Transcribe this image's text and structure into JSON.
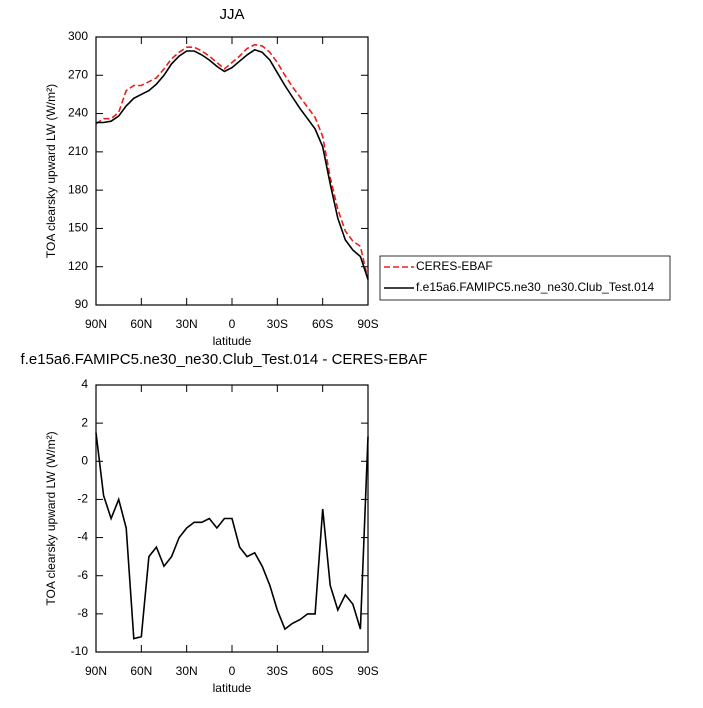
{
  "chart_data": [
    {
      "type": "line",
      "title": "JJA",
      "xlabel": "latitude",
      "ylabel": "TOA clearsky upward LW (W/m²)",
      "x": [
        90,
        85,
        80,
        75,
        70,
        65,
        60,
        55,
        50,
        45,
        40,
        35,
        30,
        25,
        20,
        15,
        10,
        5,
        0,
        -5,
        -10,
        -15,
        -20,
        -25,
        -30,
        -35,
        -40,
        -45,
        -50,
        -55,
        -60,
        -65,
        -70,
        -75,
        -80,
        -85,
        -90
      ],
      "xlim": [
        90,
        -90
      ],
      "xticks": [
        {
          "value": 90,
          "label": "90N"
        },
        {
          "value": 60,
          "label": "60N"
        },
        {
          "value": 30,
          "label": "30N"
        },
        0,
        {
          "value": -30,
          "label": "30S"
        },
        {
          "value": -60,
          "label": "60S"
        },
        {
          "value": -90,
          "label": "90S"
        }
      ],
      "ylim": [
        90,
        300
      ],
      "yticks": [
        90,
        120,
        150,
        180,
        210,
        240,
        270,
        300
      ],
      "legend": "right",
      "series": [
        {
          "name": "CERES-EBAF",
          "color": "#e8201a",
          "dash": "dashed",
          "values": [
            232,
            236,
            236,
            241,
            258,
            262,
            262,
            265,
            268,
            275,
            283,
            288,
            292,
            292,
            289,
            285,
            280,
            275,
            280,
            285,
            291,
            294,
            293,
            288,
            280,
            270,
            261,
            253,
            245,
            237,
            222,
            190,
            165,
            148,
            140,
            136,
            110
          ]
        },
        {
          "name": "f.e15a6.FAMIPC5.ne30_ne30.Club_Test.014",
          "color": "#000000",
          "dash": "solid",
          "values": [
            233,
            233,
            234,
            238,
            246,
            252,
            255,
            258,
            263,
            270,
            279,
            285,
            289,
            289,
            286,
            282,
            277,
            273,
            276,
            281,
            286,
            290,
            288,
            282,
            272,
            262,
            253,
            244,
            236,
            228,
            214,
            185,
            158,
            141,
            133,
            128,
            110
          ]
        }
      ]
    },
    {
      "type": "line",
      "title": "f.e15a6.FAMIPC5.ne30_ne30.Club_Test.014 - CERES-EBAF",
      "xlabel": "latitude",
      "ylabel": "TOA clearsky upward LW (W/m²)",
      "x": [
        90,
        85,
        80,
        75,
        70,
        65,
        60,
        55,
        50,
        45,
        40,
        35,
        30,
        25,
        20,
        15,
        10,
        5,
        0,
        -5,
        -10,
        -15,
        -20,
        -25,
        -30,
        -35,
        -40,
        -45,
        -50,
        -55,
        -60,
        -65,
        -70,
        -75,
        -80,
        -85,
        -90
      ],
      "xlim": [
        90,
        -90
      ],
      "xticks": [
        {
          "value": 90,
          "label": "90N"
        },
        {
          "value": 60,
          "label": "60N"
        },
        {
          "value": 30,
          "label": "30N"
        },
        0,
        {
          "value": -30,
          "label": "30S"
        },
        {
          "value": -60,
          "label": "60S"
        },
        {
          "value": -90,
          "label": "90S"
        }
      ],
      "ylim": [
        -10,
        4
      ],
      "yticks": [
        -10,
        -8,
        -6,
        -4,
        -2,
        0,
        2,
        4
      ],
      "series": [
        {
          "color": "#000000",
          "dash": "solid",
          "values": [
            1.5,
            -1.8,
            -3,
            -2,
            -3.5,
            -9.3,
            -9.2,
            -5,
            -4.5,
            -5.5,
            -5,
            -4,
            -3.5,
            -3.2,
            -3.2,
            -3,
            -3.5,
            -3,
            -3,
            -4.5,
            -5,
            -4.8,
            -5.5,
            -6.5,
            -7.8,
            -8.8,
            -8.5,
            -8.3,
            -8,
            -8,
            -2.5,
            -6.5,
            -7.8,
            -7,
            -7.5,
            -8.8,
            1.3
          ]
        }
      ]
    }
  ]
}
